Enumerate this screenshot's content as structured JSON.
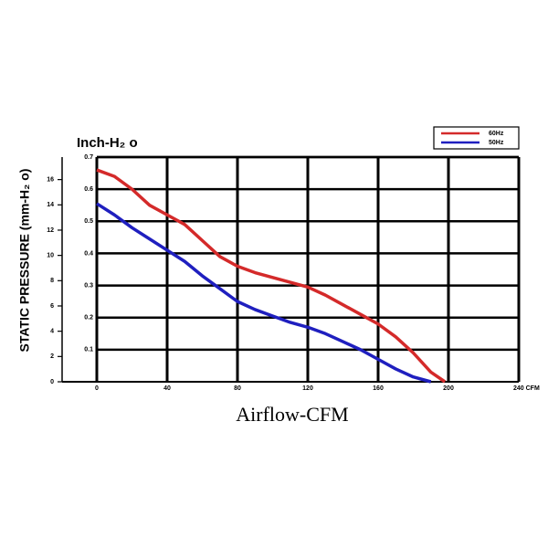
{
  "chart_data": {
    "type": "line",
    "title": "Inch-H₂ o",
    "y_label": "STATIC PRESSURE (mm-H₂ o)",
    "x_label": "Airflow-CFM",
    "xlim": [
      0,
      240
    ],
    "xticks": [
      0,
      40,
      80,
      120,
      160,
      200,
      {
        "value": 240,
        "label": "240 CFM"
      }
    ],
    "ylim": [
      0,
      0.7
    ],
    "yticks": [
      0.1,
      0.2,
      0.3,
      0.4,
      0.5,
      0.6,
      0.7
    ],
    "y2lim": [
      0,
      17.78
    ],
    "y2ticks": [
      0,
      2,
      4,
      6,
      8,
      10,
      12,
      14,
      16
    ],
    "grid": true,
    "legend": "top-right",
    "series": [
      {
        "name": "60Hz",
        "color": "#d42a2a",
        "x": [
          0,
          10,
          20,
          30,
          40,
          50,
          60,
          70,
          80,
          90,
          100,
          110,
          120,
          130,
          140,
          150,
          160,
          170,
          180,
          190,
          198
        ],
        "values": [
          0.66,
          0.64,
          0.6,
          0.55,
          0.52,
          0.49,
          0.44,
          0.39,
          0.36,
          0.34,
          0.325,
          0.31,
          0.295,
          0.27,
          0.24,
          0.21,
          0.18,
          0.14,
          0.09,
          0.03,
          0
        ]
      },
      {
        "name": "50Hz",
        "color": "#1f1fbf",
        "x": [
          0,
          10,
          20,
          30,
          40,
          50,
          60,
          70,
          80,
          90,
          100,
          110,
          120,
          130,
          140,
          150,
          160,
          170,
          180,
          190
        ],
        "values": [
          0.555,
          0.52,
          0.48,
          0.445,
          0.41,
          0.375,
          0.33,
          0.29,
          0.25,
          0.225,
          0.205,
          0.185,
          0.17,
          0.15,
          0.125,
          0.1,
          0.07,
          0.04,
          0.015,
          0
        ]
      }
    ]
  }
}
